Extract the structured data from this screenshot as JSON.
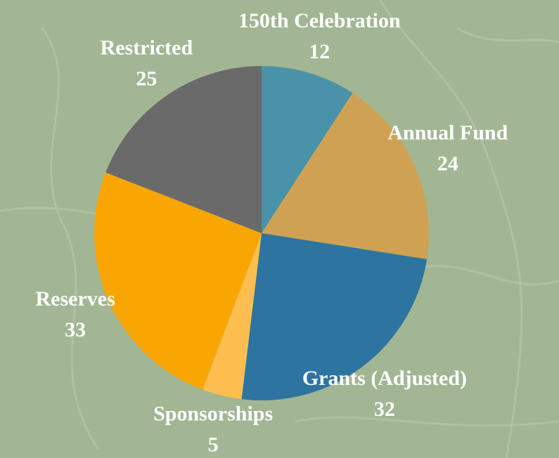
{
  "chart_data": {
    "type": "pie",
    "categories": [
      "150th Celebration",
      "Annual Fund",
      "Grants (Adjusted)",
      "Sponsorships",
      "Reserves",
      "Restricted"
    ],
    "values": [
      12,
      24,
      32,
      5,
      33,
      25
    ],
    "colors": [
      "#4a92aa",
      "#cfa253",
      "#2d74a1",
      "#fcbf4f",
      "#f9a603",
      "#6a6a6a"
    ]
  }
}
